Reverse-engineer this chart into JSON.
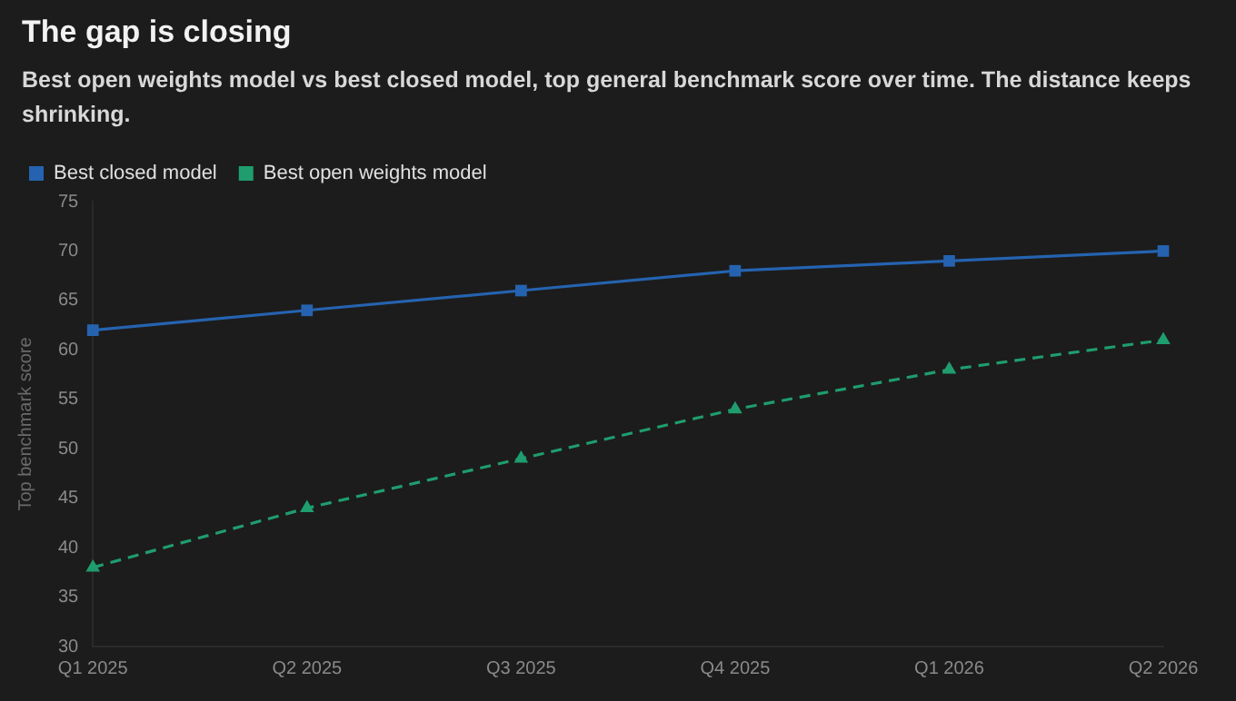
{
  "chart_data": {
    "type": "line",
    "title": "The gap is closing",
    "subtitle": "Best open weights model vs best closed model, top general benchmark score over time. The distance keeps shrinking.",
    "ylabel": "Top benchmark score",
    "categories": [
      "Q1 2025",
      "Q2 2025",
      "Q3 2025",
      "Q4 2025",
      "Q1 2026",
      "Q2 2026"
    ],
    "series": [
      {
        "name": "Best closed model",
        "color": "#2563b0",
        "values": [
          62,
          64,
          66,
          68,
          69,
          70
        ],
        "marker": "square",
        "line_style": "solid"
      },
      {
        "name": "Best open weights model",
        "color": "#1f9d6e",
        "values": [
          38,
          44,
          49,
          54,
          58,
          61
        ],
        "marker": "triangle",
        "line_style": "dashed"
      }
    ],
    "ylim": [
      30,
      75
    ],
    "yticks": [
      30,
      35,
      40,
      45,
      50,
      55,
      60,
      65,
      70,
      75
    ],
    "grid": false,
    "legend": "top left"
  }
}
